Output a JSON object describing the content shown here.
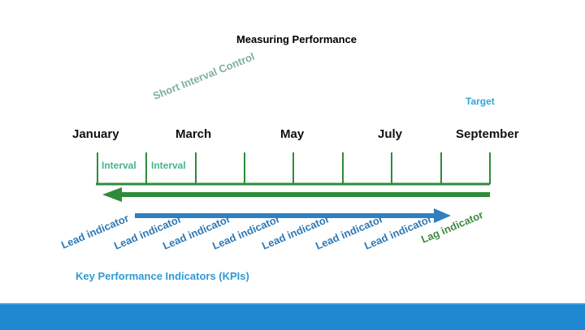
{
  "title": "Measuring Performance",
  "months": [
    "January",
    "March",
    "May",
    "July",
    "September"
  ],
  "target_label": "Target",
  "short_interval_label": "Short Interval Control",
  "interval_labels": [
    "Interval",
    "Interval"
  ],
  "lead_labels": [
    "Lead indicator",
    "Lead indicator",
    "Lead indicator",
    "Lead indicator",
    "Lead indicator",
    "Lead indicator",
    "Lead indicator"
  ],
  "lag_label": "Lag indicator",
  "kpi_label": "Key Performance Indicators (KPIs)",
  "colors": {
    "timeline_green": "#2e8b3a",
    "arrow_blue": "#2f7fc1",
    "footer_blue": "#1e88d0"
  }
}
